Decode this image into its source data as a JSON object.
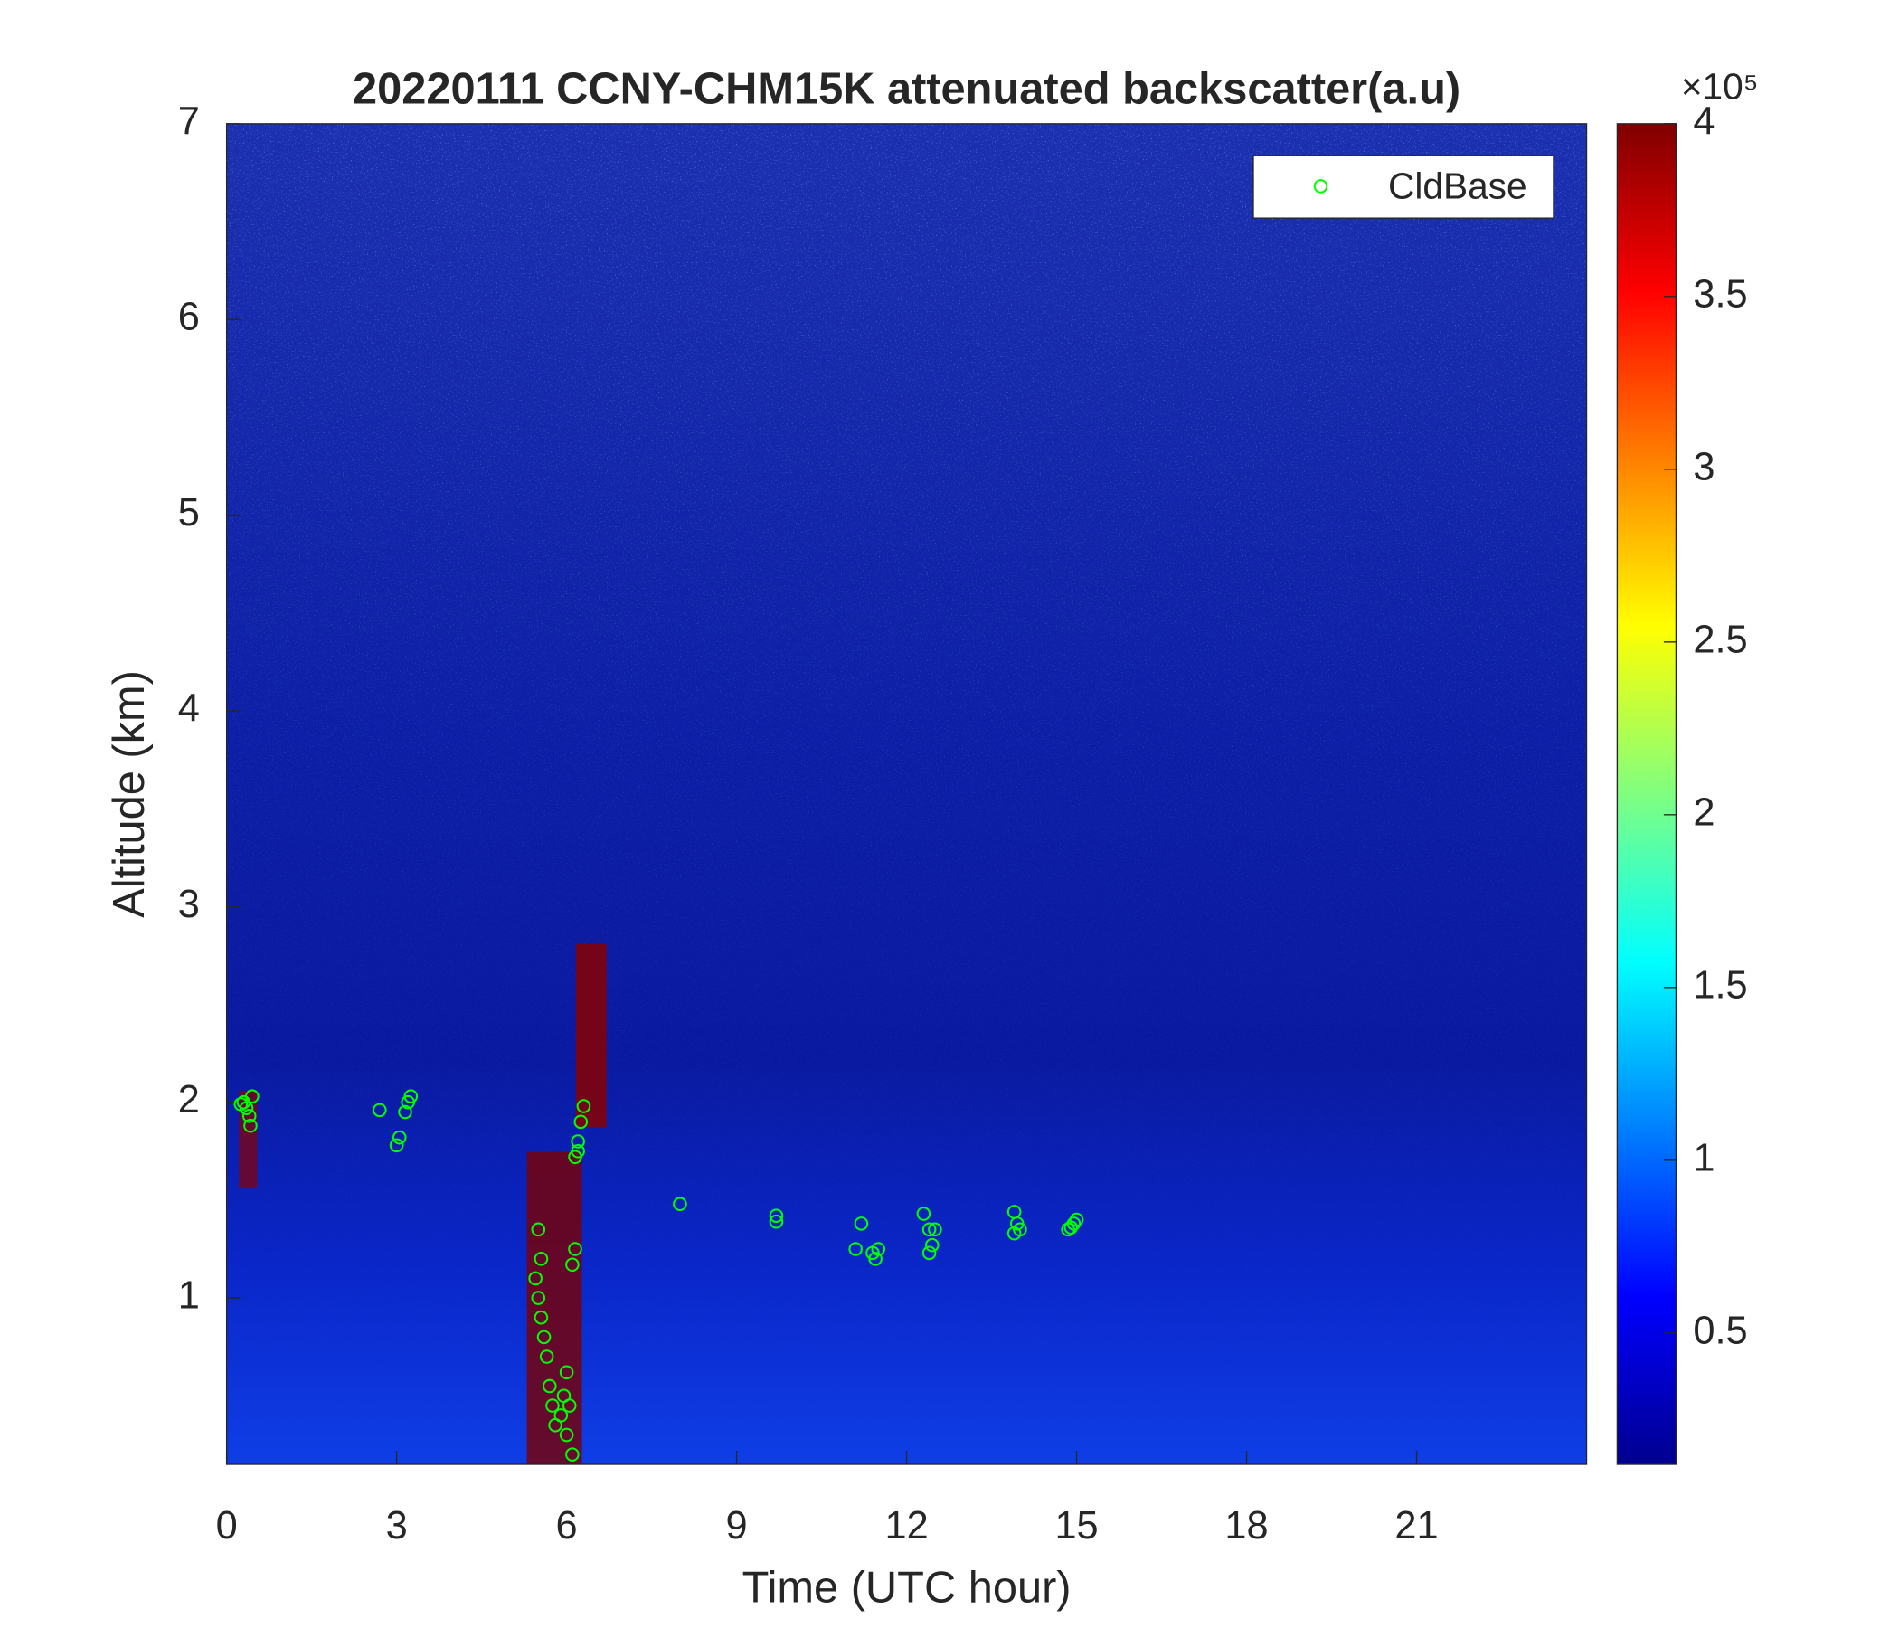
{
  "chart_data": {
    "type": "scatter",
    "title": "20220111 CCNY-CHM15K attenuated backscatter(a.u)",
    "x_label": "Time (UTC hour)",
    "y_label": "Altitude (km)",
    "xlim": [
      0,
      24
    ],
    "xticks": [
      0,
      3,
      6,
      9,
      12,
      15,
      18,
      21
    ],
    "ylim": [
      0.15,
      7
    ],
    "yticks": [
      1,
      2,
      3,
      4,
      5,
      6,
      7
    ],
    "legend_position": "upper right",
    "colorbar": {
      "colormap": "jet",
      "lim": [
        0.12,
        4
      ],
      "ticks": [
        0.5,
        1,
        1.5,
        2,
        2.5,
        3,
        3.5,
        4
      ],
      "exponent_label": "×10⁵"
    },
    "series": [
      {
        "name": "CldBase",
        "color": "#00ff00",
        "x": [
          0.25,
          0.3,
          0.35,
          0.4,
          0.42,
          0.45,
          2.7,
          3.0,
          3.05,
          3.15,
          3.2,
          3.25,
          5.45,
          5.5,
          5.5,
          5.55,
          5.55,
          5.6,
          5.65,
          5.7,
          5.75,
          5.8,
          5.9,
          5.95,
          6.0,
          6.0,
          6.05,
          6.1,
          6.1,
          6.15,
          6.15,
          6.2,
          6.2,
          6.25,
          6.3,
          8.0,
          9.7,
          9.7,
          11.1,
          11.2,
          11.4,
          11.45,
          11.5,
          12.3,
          12.4,
          12.4,
          12.45,
          12.5,
          13.9,
          13.9,
          13.95,
          14.0,
          14.85,
          14.9,
          14.95,
          15.0
        ],
        "y": [
          1.99,
          2.0,
          1.97,
          1.93,
          1.88,
          2.03,
          1.96,
          1.78,
          1.82,
          1.95,
          2.0,
          2.03,
          1.1,
          1.35,
          1.0,
          0.9,
          1.2,
          0.8,
          0.7,
          0.55,
          0.45,
          0.35,
          0.4,
          0.5,
          0.3,
          0.62,
          0.45,
          0.2,
          1.17,
          1.25,
          1.72,
          1.8,
          1.75,
          1.9,
          1.98,
          1.48,
          1.39,
          1.42,
          1.25,
          1.38,
          1.23,
          1.2,
          1.25,
          1.43,
          1.35,
          1.23,
          1.27,
          1.35,
          1.33,
          1.44,
          1.38,
          1.35,
          1.35,
          1.36,
          1.38,
          1.4
        ]
      }
    ]
  }
}
